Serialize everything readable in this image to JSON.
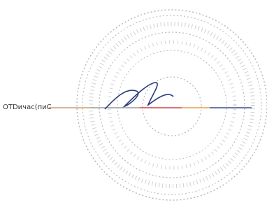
{
  "document": {
    "caption": "ОТDичас(пиС"
  }
}
